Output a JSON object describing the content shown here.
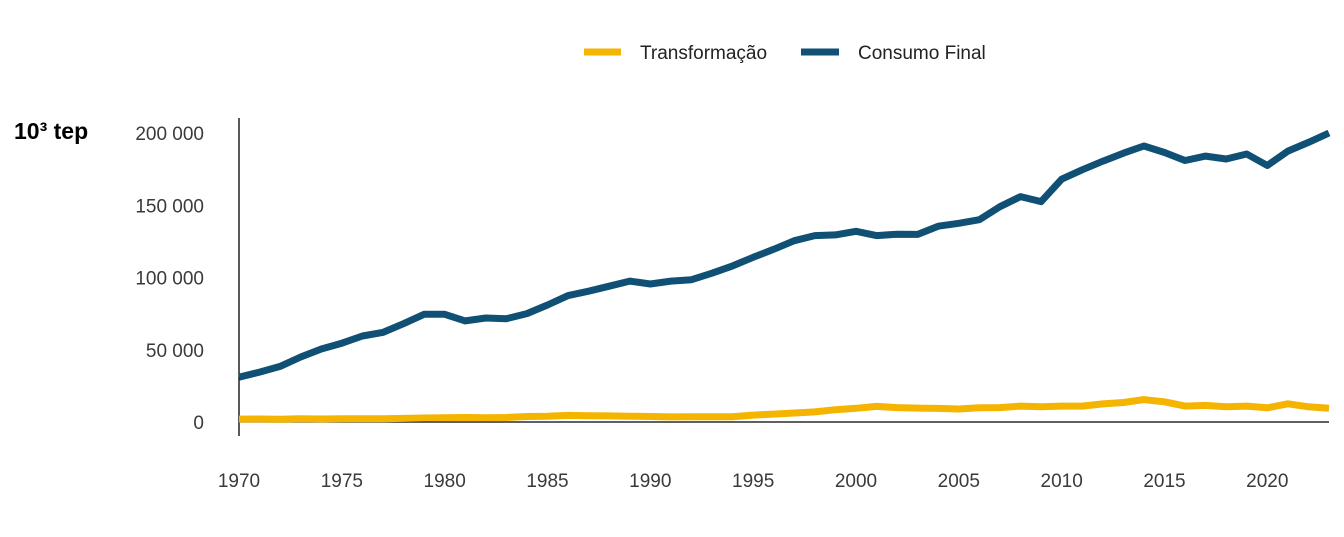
{
  "chart_data": {
    "type": "line",
    "unit_label": "10³ tep",
    "x": [
      1970,
      1971,
      1972,
      1973,
      1974,
      1975,
      1976,
      1977,
      1978,
      1979,
      1980,
      1981,
      1982,
      1983,
      1984,
      1985,
      1986,
      1987,
      1988,
      1989,
      1990,
      1991,
      1992,
      1993,
      1994,
      1995,
      1996,
      1997,
      1998,
      1999,
      2000,
      2001,
      2002,
      2003,
      2004,
      2005,
      2006,
      2007,
      2008,
      2009,
      2010,
      2011,
      2012,
      2013,
      2014,
      2015,
      2016,
      2017,
      2018,
      2019,
      2020,
      2021,
      2022,
      2023
    ],
    "xlim": [
      1970,
      2023
    ],
    "ylim": [
      0,
      200000
    ],
    "xticks": [
      1970,
      1975,
      1980,
      1985,
      1990,
      1995,
      2000,
      2005,
      2010,
      2015,
      2020
    ],
    "yticks": [
      0,
      50000,
      100000,
      150000,
      200000
    ],
    "xtick_labels": [
      "1970",
      "1975",
      "1980",
      "1985",
      "1990",
      "1995",
      "2000",
      "2005",
      "2010",
      "2015",
      "2020"
    ],
    "ytick_labels": [
      "0",
      "50 000",
      "100 000",
      "150 000",
      "200 000"
    ],
    "legend_position": "top-center",
    "grid": false,
    "series": [
      {
        "name": "Transformação",
        "color": "#F5B400",
        "values": [
          2000,
          2100,
          1900,
          2200,
          2100,
          2200,
          2200,
          2300,
          2500,
          2800,
          3000,
          3100,
          2900,
          3100,
          3800,
          4000,
          4600,
          4300,
          4200,
          4000,
          3800,
          3500,
          3700,
          3600,
          3700,
          4800,
          5500,
          6200,
          7000,
          8500,
          9500,
          10800,
          10000,
          9600,
          9400,
          9000,
          9800,
          10000,
          11000,
          10500,
          11000,
          11000,
          12500,
          13500,
          15500,
          14000,
          11000,
          11500,
          10500,
          11000,
          9800,
          12600,
          10500,
          9500
        ]
      },
      {
        "name": "Consumo Final",
        "color": "#0F5074",
        "values": [
          31000,
          34500,
          38500,
          45000,
          50500,
          54500,
          59500,
          62000,
          68000,
          74500,
          74500,
          70000,
          72000,
          71500,
          75000,
          81000,
          87500,
          90500,
          94000,
          97500,
          95500,
          97500,
          98500,
          103000,
          108000,
          114000,
          119500,
          125500,
          129000,
          129500,
          132000,
          129000,
          130000,
          129800,
          135500,
          137500,
          140000,
          149000,
          156000,
          152500,
          168000,
          174500,
          180500,
          186000,
          191000,
          186500,
          181000,
          184000,
          182000,
          185500,
          177500,
          187500,
          193500,
          200000
        ]
      }
    ]
  }
}
